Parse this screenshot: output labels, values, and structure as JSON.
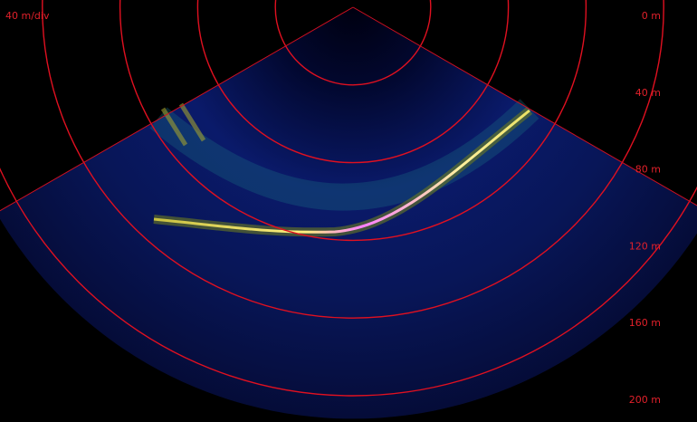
{
  "scale_label": "40 m/div",
  "range_labels": [
    "0 m",
    "40 m",
    "80 m",
    "120 m",
    "160 m",
    "200 m"
  ]
}
